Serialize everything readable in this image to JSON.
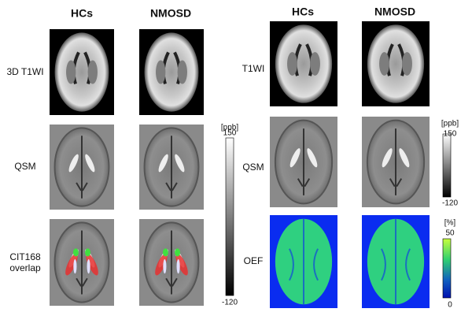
{
  "left_panel": {
    "column_headers": [
      "HCs",
      "NMOSD"
    ],
    "row_labels": [
      [
        "3D T1WI"
      ],
      [
        "QSM"
      ],
      [
        "CIT168",
        "overlap"
      ]
    ],
    "colorbar": {
      "unit": "[ppb]",
      "max": 150,
      "min": -120
    }
  },
  "right_panel": {
    "column_headers": [
      "HCs",
      "NMOSD"
    ],
    "row_labels": [
      "T1WI",
      "QSM",
      "OEF"
    ],
    "qsm_colorbar": {
      "unit": "[ppb]",
      "max": 150,
      "min": -120
    },
    "oef_colorbar": {
      "unit": "[%]",
      "max": 50,
      "min": 0
    }
  }
}
